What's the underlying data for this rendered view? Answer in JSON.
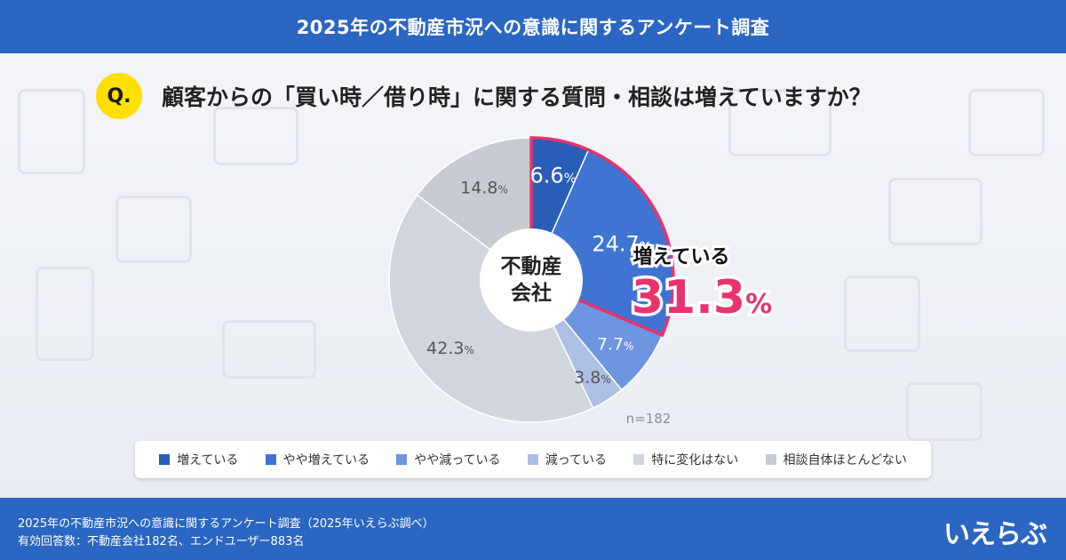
{
  "header": {
    "title": "2025年の不動産市況への意識に関するアンケート調査"
  },
  "question": {
    "badge": "Q.",
    "text": "顧客からの「買い時／借り時」に関する質問・相談は増えていますか？"
  },
  "chart_data": {
    "type": "pie",
    "center_label": [
      "不動産",
      "会社"
    ],
    "n_label": "n=182",
    "categories": [
      "増えている",
      "やや増えている",
      "やや減っている",
      "減っている",
      "特に変化はない",
      "相談自体ほとんどない"
    ],
    "values": [
      6.6,
      24.7,
      7.7,
      3.8,
      42.3,
      14.8
    ],
    "value_unit": "%",
    "colors": [
      "#2a5db8",
      "#3f74d2",
      "#6d95e0",
      "#aebfe6",
      "#d0d5de",
      "#c7cbd2"
    ],
    "callout": {
      "label": "増えている",
      "value": "31.3",
      "unit": "%",
      "color": "#e8336c"
    }
  },
  "footer": {
    "line1": "2025年の不動産市況への意識に関するアンケート調査（2025年いえらぶ調べ）",
    "line2": "有効回答数：不動産会社182名、エンドユーザー883名",
    "logo": "いえらぶ"
  }
}
